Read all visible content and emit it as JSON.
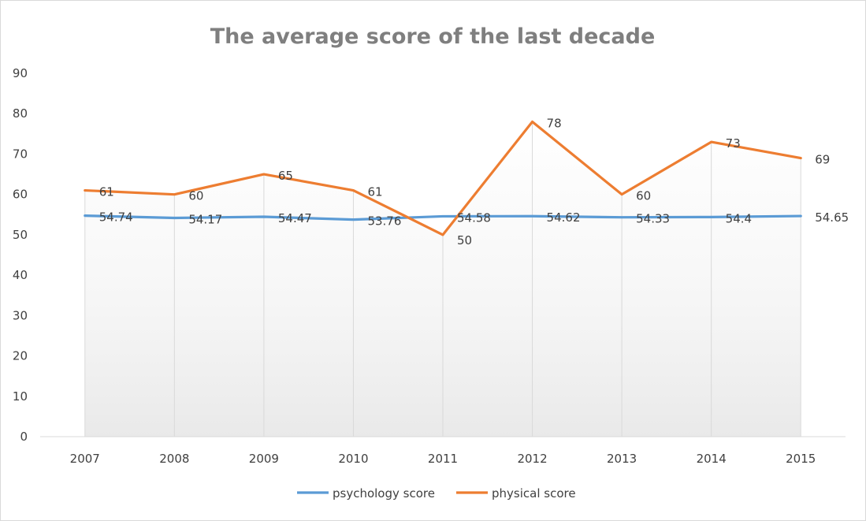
{
  "chart_data": {
    "type": "line",
    "title": "The average score of the last decade",
    "categories": [
      "2007",
      "2008",
      "2009",
      "2010",
      "2011",
      "2012",
      "2013",
      "2014",
      "2015"
    ],
    "series": [
      {
        "name": "psychology score",
        "color": "#5b9bd5",
        "values": [
          54.74,
          54.17,
          54.47,
          53.76,
          54.58,
          54.62,
          54.33,
          54.4,
          54.65
        ],
        "labels": [
          "54.74",
          "54.17",
          "54.47",
          "53.76",
          "54.58",
          "54.62",
          "54.33",
          "54.4",
          "54.65"
        ]
      },
      {
        "name": "physical score",
        "color": "#ed7d31",
        "values": [
          61,
          60,
          65,
          61,
          50,
          78,
          60,
          73,
          69
        ],
        "labels": [
          "61",
          "60",
          "65",
          "61",
          "50",
          "78",
          "60",
          "73",
          "69"
        ]
      }
    ],
    "ylim": [
      0,
      90
    ],
    "yticks": [
      "0",
      "10",
      "20",
      "30",
      "40",
      "50",
      "60",
      "70",
      "80",
      "90"
    ],
    "ytick_values": [
      0,
      10,
      20,
      30,
      40,
      50,
      60,
      70,
      80,
      90
    ],
    "grid": "vertical drop lines, area gradient fill",
    "legend": "bottom"
  }
}
